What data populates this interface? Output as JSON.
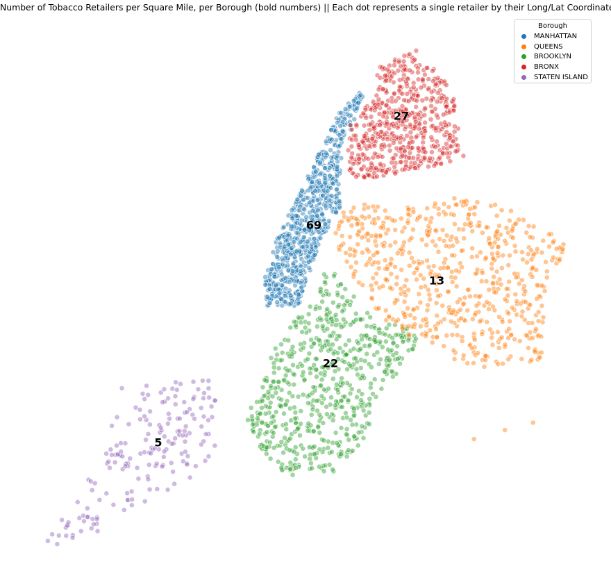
{
  "chart_data": {
    "type": "scatter",
    "title": "Number of Tobacco Retailers per Square Mile, per Borough (bold numbers) || Each dot represents a single retailer by their Long/Lat Coordinates",
    "xlabel": "",
    "ylabel": "",
    "axes_visible": false,
    "grid": false,
    "legend": {
      "title": "Borough",
      "placement": "top-right",
      "entries": [
        "MANHATTAN",
        "QUEENS",
        "BROOKLYN",
        "BRONX",
        "STATEN ISLAND"
      ]
    },
    "colors": {
      "MANHATTAN": "#1f77b4",
      "QUEENS": "#ff7f0e",
      "BROOKLYN": "#2ca02c",
      "BRONX": "#d62728",
      "STATEN ISLAND": "#9467bd"
    },
    "annotations": [
      {
        "borough": "MANHATTAN",
        "text": "69"
      },
      {
        "borough": "BRONX",
        "text": "27"
      },
      {
        "borough": "QUEENS",
        "text": "13"
      },
      {
        "borough": "BROOKLYN",
        "text": "22"
      },
      {
        "borough": "STATEN ISLAND",
        "text": "5"
      }
    ],
    "series": [
      {
        "name": "MANHATTAN",
        "x": [
          -73.9712,
          -73.9815,
          -73.9951,
          -74.0098,
          -73.9823,
          -73.9617,
          -73.9452,
          -73.9391,
          -73.9578,
          -73.9654,
          -73.9889,
          -74.0027,
          -73.9512,
          -73.9402,
          -73.9264,
          -73.9301,
          -73.9741,
          -73.9868,
          -74.0056,
          -73.9487
        ],
        "y": [
          40.7589,
          40.7484,
          40.7233,
          40.7075,
          40.7614,
          40.7794,
          40.8116,
          40.8373,
          40.7998,
          40.7712,
          40.7394,
          40.7316,
          40.7893,
          40.821,
          40.8528,
          40.8443,
          40.7646,
          40.7305,
          40.7141,
          40.8002
        ]
      },
      {
        "name": "QUEENS",
        "x": [
          -73.9127,
          -73.8754,
          -73.8296,
          -73.7931,
          -73.7562,
          -73.8118,
          -73.8479,
          -73.9033,
          -73.8612,
          -73.7827,
          -73.7443,
          -73.9224,
          -73.8012,
          -73.7689,
          -73.7394
        ],
        "y": [
          40.7596,
          40.7492,
          40.7578,
          40.7204,
          40.7017,
          40.6889,
          40.7093,
          40.7437,
          40.7295,
          40.6743,
          40.6658,
          40.7698,
          40.5913,
          40.5987,
          40.6048
        ]
      },
      {
        "name": "BROOKLYN",
        "x": [
          -73.9482,
          -73.9601,
          -73.9247,
          -73.9823,
          -74.0137,
          -73.9712,
          -73.9054,
          -73.8891,
          -74.0011,
          -73.9415,
          -73.9689,
          -73.9311,
          -73.9556,
          -73.9778,
          -73.8943
        ],
        "y": [
          40.6782,
          40.6501,
          40.6938,
          40.6644,
          40.6328,
          40.6112,
          40.6719,
          40.6561,
          40.6027,
          40.5889,
          40.5791,
          40.6354,
          40.7123,
          40.6871,
          40.6466
        ]
      },
      {
        "name": "BRONX",
        "x": [
          -73.8648,
          -73.8892,
          -73.9103,
          -73.8451,
          -73.8234,
          -73.8987,
          -73.8712,
          -73.8567,
          -73.9018,
          -73.8389,
          -73.8745,
          -73.8123
        ],
        "y": [
          40.8448,
          40.8271,
          40.8613,
          40.8702,
          40.8352,
          40.8503,
          40.8797,
          40.8166,
          40.8382,
          40.8541,
          40.8889,
          40.8228
        ]
      },
      {
        "name": "STATEN ISLAND",
        "x": [
          -74.1502,
          -74.1801,
          -74.1135,
          -74.2045,
          -74.0897,
          -74.0783,
          -74.1632,
          -74.2268,
          -74.1251,
          -74.0956
        ],
        "y": [
          40.5795,
          40.6022,
          40.6197,
          40.5581,
          40.6321,
          40.6253,
          40.5418,
          40.5212,
          40.5935,
          40.6112
        ]
      }
    ]
  }
}
